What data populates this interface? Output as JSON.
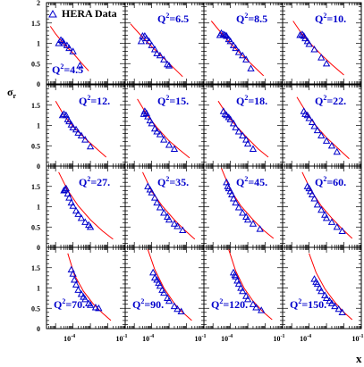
{
  "chart_data": {
    "type": "scatter",
    "ylabel": "σ",
    "ylabel_sub": "r",
    "xlabel": "x",
    "legend": "HERA Data",
    "legend_position": "top-left",
    "xscale": "log",
    "xlim": [
      3e-06,
      0.1
    ],
    "ylim": [
      0,
      2
    ],
    "ytick_labels": [
      "0",
      "0.5",
      "1",
      "1.5",
      "2"
    ],
    "xtick_labels": [
      {
        "base": "10",
        "exp": "-4"
      },
      {
        "base": "10",
        "exp": "-1"
      }
    ],
    "data_color": "#0000cc",
    "fit_color": "#ff0000",
    "label_color": "#0000cc",
    "panels": [
      {
        "label": {
          "q": "Q",
          "sup": "2",
          "value": "=4.5"
        },
        "x": [
          1.5e-05,
          2e-05,
          2.5e-05,
          3e-05,
          4.5e-05,
          6e-05,
          0.0001,
          0.00025
        ],
        "y": [
          1.0,
          1.08,
          1.05,
          1.0,
          0.95,
          0.88,
          0.8,
          0.45
        ],
        "fit": [
          [
            5e-06,
            1.42
          ],
          [
            1e-05,
            1.23
          ],
          [
            3e-05,
            0.98
          ],
          [
            0.0001,
            0.76
          ],
          [
            0.0003,
            0.52
          ],
          [
            0.0008,
            0.32
          ]
        ]
      },
      {
        "label": {
          "q": "Q",
          "sup": "2",
          "value": "=6.5"
        },
        "x": [
          2.5e-05,
          3e-05,
          4e-05,
          5e-05,
          7e-05,
          0.0001,
          0.00015,
          0.0002,
          0.0003,
          0.0005,
          0.0008,
          0.001
        ],
        "y": [
          1.05,
          1.18,
          1.18,
          1.12,
          1.05,
          0.95,
          0.85,
          0.75,
          0.7,
          0.6,
          0.48,
          0.45
        ],
        "fit": [
          [
            6e-06,
            1.48
          ],
          [
            2e-05,
            1.23
          ],
          [
            0.0001,
            0.92
          ],
          [
            0.0005,
            0.63
          ],
          [
            0.002,
            0.38
          ],
          [
            0.006,
            0.18
          ]
        ]
      },
      {
        "label": {
          "q": "Q",
          "sup": "2",
          "value": "=8.5"
        },
        "x": [
          2.5e-05,
          3e-05,
          4e-05,
          5e-05,
          6e-05,
          8e-05,
          0.0001,
          0.00015,
          0.0002,
          0.0003,
          0.0005,
          0.0008,
          0.0015
        ],
        "y": [
          1.2,
          1.25,
          1.22,
          1.2,
          1.18,
          1.1,
          1.05,
          0.95,
          0.88,
          0.78,
          0.7,
          0.6,
          0.38
        ],
        "fit": [
          [
            8e-06,
            1.55
          ],
          [
            3e-05,
            1.25
          ],
          [
            0.0001,
            1.0
          ],
          [
            0.0005,
            0.7
          ],
          [
            0.002,
            0.45
          ],
          [
            0.008,
            0.2
          ]
        ]
      },
      {
        "label": {
          "q": "Q",
          "sup": "2",
          "value": "=10."
        },
        "x": [
          3e-05,
          4e-05,
          5e-05,
          6e-05,
          8e-05,
          0.0001,
          0.0002,
          0.0005,
          0.001
        ],
        "y": [
          1.2,
          1.22,
          1.18,
          1.12,
          1.05,
          0.98,
          0.85,
          0.65,
          0.5
        ],
        "fit": [
          [
            1.2e-05,
            1.55
          ],
          [
            4e-05,
            1.22
          ],
          [
            0.00015,
            0.95
          ],
          [
            0.0005,
            0.72
          ],
          [
            0.002,
            0.48
          ],
          [
            0.01,
            0.22
          ]
        ]
      },
      {
        "label": {
          "q": "Q",
          "sup": "2",
          "value": "=12."
        },
        "x": [
          2.5e-05,
          3e-05,
          4e-05,
          5e-05,
          6e-05,
          8e-05,
          0.0001,
          0.00015,
          0.0002,
          0.0003,
          0.0005,
          0.001
        ],
        "y": [
          1.25,
          1.28,
          1.25,
          1.15,
          1.1,
          1.02,
          0.95,
          0.9,
          0.82,
          0.75,
          0.65,
          0.48
        ],
        "fit": [
          [
            1e-05,
            1.6
          ],
          [
            3e-05,
            1.25
          ],
          [
            0.0001,
            0.98
          ],
          [
            0.0005,
            0.68
          ],
          [
            0.002,
            0.45
          ],
          [
            0.008,
            0.22
          ]
        ]
      },
      {
        "label": {
          "q": "Q",
          "sup": "2",
          "value": "=15."
        },
        "x": [
          3.5e-05,
          4e-05,
          5e-05,
          6e-05,
          8e-05,
          0.0001,
          0.00015,
          0.0002,
          0.0003,
          0.0005,
          0.001,
          0.002
        ],
        "y": [
          1.28,
          1.35,
          1.3,
          1.22,
          1.12,
          1.05,
          0.92,
          0.85,
          0.78,
          0.65,
          0.52,
          0.42
        ],
        "fit": [
          [
            1.5e-05,
            1.65
          ],
          [
            5e-05,
            1.28
          ],
          [
            0.0002,
            0.95
          ],
          [
            0.001,
            0.62
          ],
          [
            0.004,
            0.4
          ],
          [
            0.015,
            0.2
          ]
        ]
      },
      {
        "label": {
          "q": "Q",
          "sup": "2",
          "value": "=18."
        },
        "x": [
          4e-05,
          5e-05,
          6e-05,
          8e-05,
          0.0001,
          0.00015,
          0.0002,
          0.0003,
          0.0005,
          0.0008,
          0.001,
          0.002
        ],
        "y": [
          1.35,
          1.28,
          1.25,
          1.2,
          1.15,
          1.05,
          0.95,
          0.85,
          0.75,
          0.65,
          0.55,
          0.42
        ],
        "fit": [
          [
            2e-05,
            1.6
          ],
          [
            6e-05,
            1.28
          ],
          [
            0.0002,
            1.0
          ],
          [
            0.001,
            0.68
          ],
          [
            0.004,
            0.42
          ],
          [
            0.015,
            0.22
          ]
        ]
      },
      {
        "label": {
          "q": "Q",
          "sup": "2",
          "value": "=22."
        },
        "x": [
          5e-05,
          6e-05,
          8e-05,
          0.0001,
          0.00015,
          0.0002,
          0.0003,
          0.0005,
          0.001,
          0.002,
          0.004
        ],
        "y": [
          1.35,
          1.28,
          1.25,
          1.18,
          1.08,
          0.98,
          0.88,
          0.75,
          0.62,
          0.5,
          0.35
        ],
        "fit": [
          [
            2e-05,
            1.7
          ],
          [
            8e-05,
            1.28
          ],
          [
            0.0003,
            0.95
          ],
          [
            0.001,
            0.7
          ],
          [
            0.005,
            0.42
          ],
          [
            0.02,
            0.18
          ]
        ]
      },
      {
        "label": {
          "q": "Q",
          "sup": "2",
          "value": "=27."
        },
        "x": [
          3e-05,
          3.5e-05,
          4e-05,
          5e-05,
          6e-05,
          8e-05,
          0.0001,
          0.00015,
          0.0002,
          0.0003,
          0.0005,
          0.0008,
          0.001
        ],
        "y": [
          1.4,
          1.42,
          1.45,
          1.32,
          1.22,
          1.1,
          1.02,
          0.9,
          0.82,
          0.72,
          0.62,
          0.55,
          0.5
        ],
        "fit": [
          [
            1.5e-05,
            1.85
          ],
          [
            5e-05,
            1.4
          ],
          [
            0.0002,
            1.02
          ],
          [
            0.001,
            0.68
          ],
          [
            0.005,
            0.4
          ],
          [
            0.02,
            0.2
          ]
        ]
      },
      {
        "label": {
          "q": "Q",
          "sup": "2",
          "value": "=35."
        },
        "x": [
          6e-05,
          8e-05,
          0.0001,
          0.00015,
          0.0002,
          0.0003,
          0.0005,
          0.0008,
          0.001,
          0.002,
          0.003,
          0.006
        ],
        "y": [
          1.5,
          1.42,
          1.35,
          1.22,
          1.1,
          0.98,
          0.85,
          0.75,
          0.68,
          0.58,
          0.52,
          0.42
        ],
        "fit": [
          [
            3e-05,
            1.85
          ],
          [
            0.0001,
            1.38
          ],
          [
            0.0004,
            1.02
          ],
          [
            0.002,
            0.68
          ],
          [
            0.008,
            0.42
          ],
          [
            0.03,
            0.2
          ]
        ]
      },
      {
        "label": {
          "q": "Q",
          "sup": "2",
          "value": "=45."
        },
        "x": [
          6e-05,
          7e-05,
          8e-05,
          0.0001,
          0.00012,
          0.00015,
          0.0002,
          0.0003,
          0.0005,
          0.0008,
          0.001,
          0.002,
          0.005
        ],
        "y": [
          1.6,
          1.5,
          1.45,
          1.38,
          1.3,
          1.2,
          1.1,
          0.98,
          0.85,
          0.75,
          0.68,
          0.58,
          0.45
        ],
        "fit": [
          [
            3e-05,
            1.95
          ],
          [
            0.0001,
            1.42
          ],
          [
            0.0004,
            1.02
          ],
          [
            0.002,
            0.68
          ],
          [
            0.008,
            0.42
          ],
          [
            0.03,
            0.22
          ]
        ]
      },
      {
        "label": {
          "q": "Q",
          "sup": "2",
          "value": "=60."
        },
        "x": [
          8e-05,
          0.0001,
          0.00012,
          0.00015,
          0.0002,
          0.0003,
          0.0005,
          0.0008,
          0.001,
          0.002,
          0.004,
          0.008
        ],
        "y": [
          1.5,
          1.45,
          1.38,
          1.3,
          1.2,
          1.05,
          0.92,
          0.8,
          0.72,
          0.62,
          0.5,
          0.4
        ],
        "fit": [
          [
            4e-05,
            1.85
          ],
          [
            0.00012,
            1.42
          ],
          [
            0.0005,
            1.02
          ],
          [
            0.002,
            0.72
          ],
          [
            0.008,
            0.45
          ],
          [
            0.03,
            0.22
          ]
        ]
      },
      {
        "label": {
          "q": "Q",
          "sup": "2",
          "value": "=70."
        },
        "x": [
          8e-05,
          0.0001,
          0.00012,
          0.00015,
          0.0002,
          0.0003,
          0.0004,
          0.0005,
          0.0008,
          0.001,
          0.002,
          0.003
        ],
        "y": [
          1.45,
          1.35,
          1.2,
          1.08,
          0.95,
          0.85,
          0.78,
          0.72,
          0.62,
          0.58,
          0.52,
          0.5
        ],
        "fit": [
          [
            5e-05,
            1.85
          ],
          [
            0.00012,
            1.32
          ],
          [
            0.0004,
            0.92
          ],
          [
            0.0015,
            0.6
          ],
          [
            0.005,
            0.38
          ],
          [
            0.015,
            0.2
          ]
        ]
      },
      {
        "label": {
          "q": "Q",
          "sup": "2",
          "value": "=90."
        },
        "x": [
          0.00012,
          0.00015,
          0.0002,
          0.00025,
          0.0003,
          0.0004,
          0.0005,
          0.0008,
          0.001,
          0.002,
          0.003,
          0.005
        ],
        "y": [
          1.38,
          1.25,
          1.2,
          1.12,
          1.05,
          0.95,
          0.88,
          0.75,
          0.68,
          0.55,
          0.48,
          0.42
        ],
        "fit": [
          [
            6e-05,
            1.95
          ],
          [
            0.00015,
            1.45
          ],
          [
            0.0005,
            1.0
          ],
          [
            0.002,
            0.62
          ],
          [
            0.006,
            0.4
          ],
          [
            0.02,
            0.2
          ]
        ]
      },
      {
        "label": {
          "q": "Q",
          "sup": "2",
          "value": "=120."
        },
        "x": [
          0.00015,
          0.00018,
          0.0002,
          0.00025,
          0.0003,
          0.0004,
          0.0005,
          0.0008,
          0.001,
          0.002,
          0.003,
          0.006
        ],
        "y": [
          1.38,
          1.32,
          1.28,
          1.18,
          1.1,
          1.0,
          0.92,
          0.8,
          0.72,
          0.6,
          0.52,
          0.45
        ],
        "fit": [
          [
            8e-05,
            1.95
          ],
          [
            0.0002,
            1.42
          ],
          [
            0.0006,
            1.0
          ],
          [
            0.002,
            0.68
          ],
          [
            0.008,
            0.4
          ],
          [
            0.025,
            0.22
          ]
        ]
      },
      {
        "label": {
          "q": "Q",
          "sup": "2",
          "value": "=150."
        },
        "x": [
          0.0002,
          0.00025,
          0.0003,
          0.0004,
          0.0005,
          0.0008,
          0.001,
          0.0015,
          0.002,
          0.003,
          0.005,
          0.008
        ],
        "y": [
          1.22,
          1.15,
          1.1,
          1.0,
          0.92,
          0.82,
          0.75,
          0.68,
          0.62,
          0.55,
          0.48,
          0.4
        ],
        "fit": [
          [
            0.0001,
            1.85
          ],
          [
            0.00025,
            1.38
          ],
          [
            0.0008,
            0.98
          ],
          [
            0.003,
            0.65
          ],
          [
            0.01,
            0.4
          ],
          [
            0.03,
            0.22
          ]
        ]
      }
    ]
  }
}
